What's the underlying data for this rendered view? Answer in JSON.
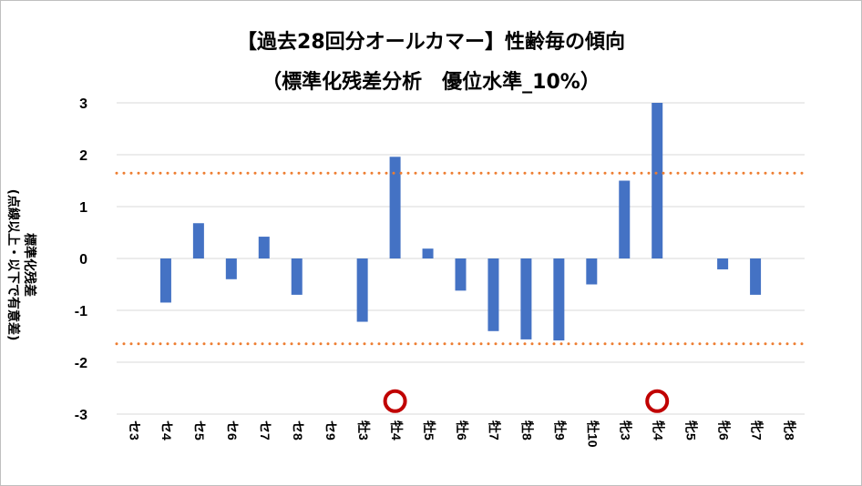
{
  "chart_data": {
    "type": "bar",
    "title": "【過去28回分オールカマー】性齢毎の傾向",
    "subtitle": "（標準化残差分析　優位水準_10%）",
    "ylabel_line1": "標準化残差",
    "ylabel_line2": "(点線以上・以下で有意差)",
    "categories": [
      "セ3",
      "セ4",
      "セ5",
      "セ6",
      "セ7",
      "セ8",
      "セ9",
      "牡3",
      "牡4",
      "牡5",
      "牡6",
      "牡7",
      "牡8",
      "牡9",
      "牡10",
      "牝3",
      "牝4",
      "牝5",
      "牝6",
      "牝7",
      "牝8"
    ],
    "values": [
      0,
      -0.85,
      0.68,
      -0.4,
      0.42,
      -0.7,
      0,
      -1.22,
      1.96,
      0.19,
      -0.62,
      -1.4,
      -1.56,
      -1.58,
      -0.5,
      1.5,
      3.0,
      0,
      -0.21,
      -0.7,
      0
    ],
    "ylim": [
      -3,
      3
    ],
    "yticks": [
      3,
      2,
      1,
      0,
      -1,
      -2,
      -3
    ],
    "threshold": 1.645,
    "significant_markers": [
      "牡4",
      "牝4"
    ],
    "colors": {
      "bar": "#4472c4",
      "threshold_line": "#ed7d31",
      "grid": "#d9d9d9",
      "marker_ring": "#c00000"
    },
    "grid": true
  }
}
